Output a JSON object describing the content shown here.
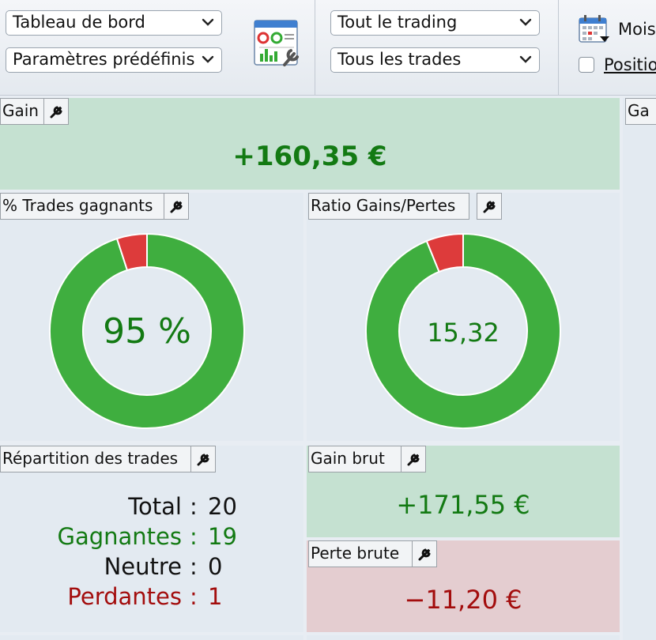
{
  "toolbar": {
    "dashboard_select": "Tableau de bord",
    "presets_select": "Paramètres prédéfinis",
    "trading_select": "Tout le trading",
    "trades_select": "Tous les trades",
    "period_label": "Mois",
    "positions_label": "Positio",
    "positions_checked": false
  },
  "panels": {
    "gain": {
      "title": "Gain",
      "value": "+160,35 €"
    },
    "right_cut": {
      "title": "Ga"
    },
    "win_rate": {
      "title": "% Trades gagnants",
      "center": "95 %",
      "fraction": 0.95
    },
    "ratio": {
      "title": "Ratio Gains/Pertes",
      "center": "15,32",
      "fraction": 0.9387
    },
    "distribution": {
      "title": "Répartition des trades",
      "rows": [
        {
          "label": "Total",
          "sep": ":",
          "value": "20"
        },
        {
          "label": "Gagnantes",
          "sep": ":",
          "value": "19"
        },
        {
          "label": "Neutre",
          "sep": ":",
          "value": "0"
        },
        {
          "label": "Perdantes",
          "sep": ":",
          "value": "1"
        }
      ]
    },
    "gross_gain": {
      "title": "Gain brut",
      "value": "+171,55 €"
    },
    "gross_loss": {
      "title": "Perte brute",
      "value": "−11,20 €"
    }
  },
  "colors": {
    "win": "#3fae3f",
    "loss": "#dd3b3b",
    "positive_text": "#137a13",
    "negative_text": "#a30d0d"
  }
}
